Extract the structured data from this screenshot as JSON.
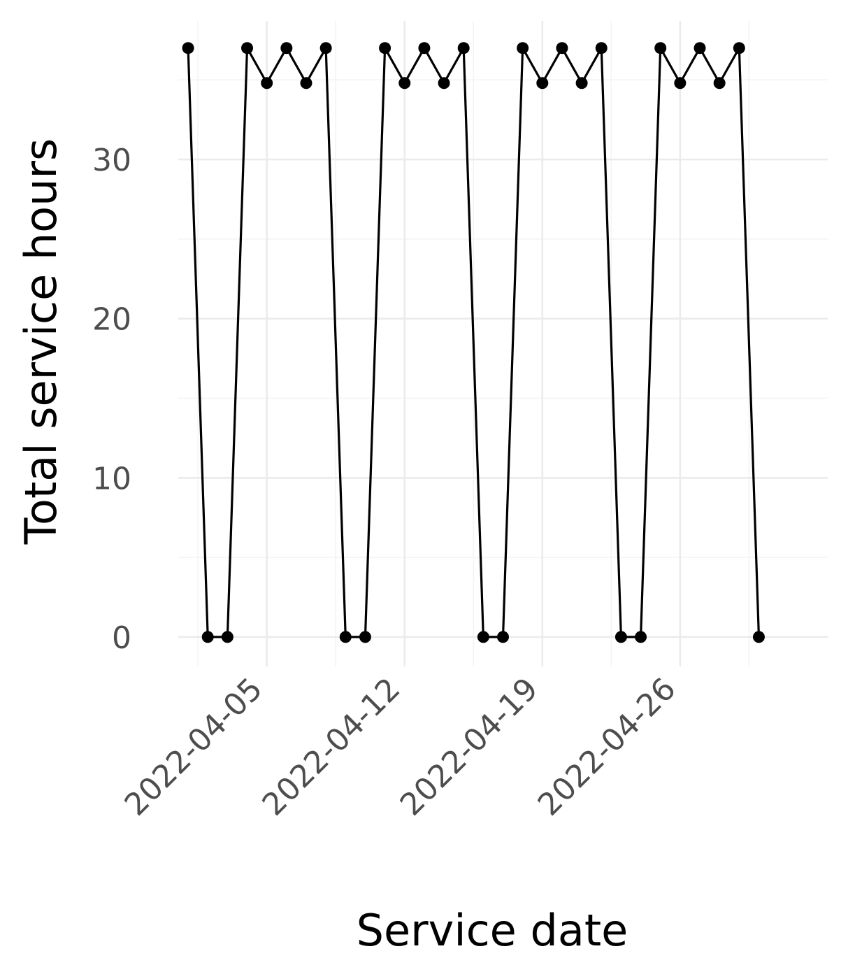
{
  "chart_data": {
    "type": "line",
    "title": "",
    "xlabel": "Service date",
    "ylabel": "Total service hours",
    "x_axis": "date",
    "xlim": [
      "2022-03-31.5",
      "2022-05-03.5"
    ],
    "ylim": [
      -1.85,
      38.7
    ],
    "x_ticks": [
      "2022-04-05",
      "2022-04-12",
      "2022-04-19",
      "2022-04-26"
    ],
    "y_ticks": [
      0,
      10,
      20,
      30
    ],
    "grid": true,
    "legend": "none",
    "line_color": "#000000",
    "marker": "circle",
    "series": [
      {
        "x": [
          "2022-04-01",
          "2022-04-02",
          "2022-04-03",
          "2022-04-04",
          "2022-04-05",
          "2022-04-06",
          "2022-04-07",
          "2022-04-08",
          "2022-04-09",
          "2022-04-10",
          "2022-04-11",
          "2022-04-12",
          "2022-04-13",
          "2022-04-14",
          "2022-04-15",
          "2022-04-16",
          "2022-04-17",
          "2022-04-18",
          "2022-04-19",
          "2022-04-20",
          "2022-04-21",
          "2022-04-22",
          "2022-04-23",
          "2022-04-24",
          "2022-04-25",
          "2022-04-26",
          "2022-04-27",
          "2022-04-28",
          "2022-04-29",
          "2022-04-30"
        ],
        "y": [
          37,
          0,
          0,
          37,
          34.8,
          37,
          34.8,
          37,
          0,
          0,
          37,
          34.8,
          37,
          34.8,
          37,
          0,
          0,
          37,
          34.8,
          37,
          34.8,
          37,
          0,
          0,
          37,
          34.8,
          37,
          34.8,
          37,
          0
        ]
      }
    ]
  }
}
